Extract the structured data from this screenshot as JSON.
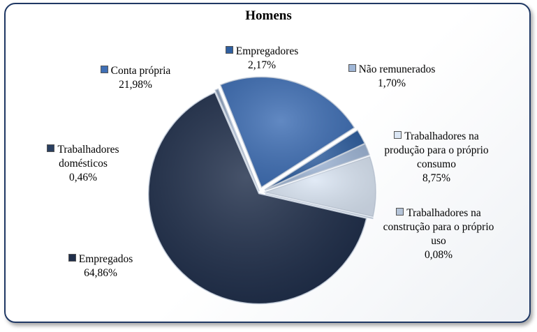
{
  "chart_data": {
    "type": "pie",
    "title": "Homens",
    "slices": [
      {
        "label": "Empregados",
        "value": 64.86,
        "display": "64,86%",
        "color": "#1f2e4a"
      },
      {
        "label": "Trabalhadores domésticos",
        "value": 0.46,
        "display": "0,46%",
        "color": "#8fa3bf"
      },
      {
        "label": "Conta própria",
        "value": 21.98,
        "display": "21,98%",
        "color": "#3f6fb5"
      },
      {
        "label": "Empregadores",
        "value": 2.17,
        "display": "2,17%",
        "color": "#2f5fa0"
      },
      {
        "label": "Não remunerados",
        "value": 1.7,
        "display": "1,70%",
        "color": "#9fb6d6"
      },
      {
        "label": "Trabalhadores na produção para o próprio consumo",
        "value": 8.75,
        "display": "8,75%",
        "color": "#dbe6f4"
      },
      {
        "label": "Trabalhadores na construção para o próprio uso",
        "value": 0.08,
        "display": "0,08%",
        "color": "#b5c4d8"
      }
    ],
    "legend": "none"
  }
}
